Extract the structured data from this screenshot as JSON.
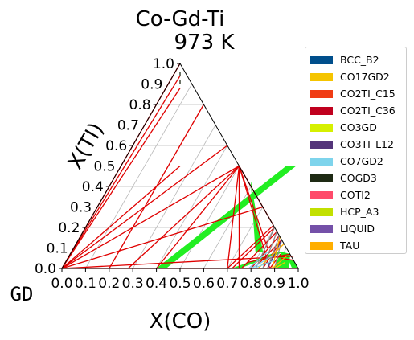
{
  "chart_data": {
    "type": "ternary-phase-diagram",
    "title": "Co-Gd-Ti",
    "subtitle": "973  K",
    "xlabel": "X(CO)",
    "ylabel": "X(TI)",
    "corner_label": "GD",
    "xlim": [
      0,
      1
    ],
    "ylim": [
      0,
      1
    ],
    "x_ticks": [
      "0.0",
      "0.1",
      "0.2",
      "0.3",
      "0.4",
      "0.5",
      "0.6",
      "0.7",
      "0.8",
      "0.9",
      "1.0"
    ],
    "y_ticks": [
      "0.0",
      "0.1",
      "0.2",
      "0.3",
      "0.4",
      "0.5",
      "0.6",
      "0.7",
      "0.8",
      "0.9",
      "1.0"
    ],
    "grid": true,
    "legend_position": "right",
    "legend": [
      {
        "name": "BCC_B2",
        "color": "#004f8c"
      },
      {
        "name": "CO17GD2",
        "color": "#f5c400"
      },
      {
        "name": "CO2TI_C15",
        "color": "#f03c14"
      },
      {
        "name": "CO2TI_C36",
        "color": "#c0001e"
      },
      {
        "name": "CO3GD",
        "color": "#d6f000"
      },
      {
        "name": "CO3TI_L12",
        "color": "#54347a"
      },
      {
        "name": "CO7GD2",
        "color": "#7ed4ec"
      },
      {
        "name": "COGD3",
        "color": "#1e2a14"
      },
      {
        "name": "COTI2",
        "color": "#ff4a6a"
      },
      {
        "name": "HCP_A3",
        "color": "#c2e000"
      },
      {
        "name": "LIQUID",
        "color": "#7450a8"
      },
      {
        "name": "TAU",
        "color": "#ffae00"
      }
    ],
    "regions": [
      {
        "color": "#22ee22",
        "points": [
          [
            0.4,
            0.0
          ],
          [
            0.44,
            0.0
          ],
          [
            0.74,
            0.5
          ],
          [
            0.7,
            0.5
          ]
        ]
      },
      {
        "color": "#22ee22",
        "points": [
          [
            0.59,
            0.42
          ],
          [
            0.615,
            0.38
          ],
          [
            0.81,
            0.08
          ],
          [
            0.78,
            0.08
          ]
        ]
      },
      {
        "color": "#22ee22",
        "points": [
          [
            0.895,
            0.0
          ],
          [
            0.96,
            0.0
          ],
          [
            0.93,
            0.07
          ],
          [
            0.89,
            0.08
          ]
        ]
      },
      {
        "color": "#22ee22",
        "points": [
          [
            0.72,
            0.0
          ],
          [
            0.75,
            0.0
          ],
          [
            0.895,
            0.08
          ],
          [
            0.87,
            0.08
          ]
        ]
      },
      {
        "color": "#22ee22",
        "points": [
          [
            0.975,
            0.0
          ],
          [
            1.0,
            0.0
          ],
          [
            0.96,
            0.04
          ],
          [
            0.94,
            0.04
          ]
        ]
      }
    ],
    "tie_lines": [
      {
        "color": "#e00000",
        "points": [
          [
            0.0,
            0.0
          ],
          [
            0.0,
            1.0
          ]
        ]
      },
      {
        "color": "#e00000",
        "points": [
          [
            0.0,
            0.0
          ],
          [
            0.03,
            0.94
          ]
        ]
      },
      {
        "color": "#e00000",
        "points": [
          [
            0.0,
            0.0
          ],
          [
            0.06,
            0.88
          ]
        ]
      },
      {
        "color": "#e00000",
        "points": [
          [
            0.0,
            0.0
          ],
          [
            0.25,
            0.5
          ]
        ]
      },
      {
        "color": "#e00000",
        "points": [
          [
            0.0,
            0.0
          ],
          [
            0.4,
            0.6
          ]
        ]
      },
      {
        "color": "#e00000",
        "points": [
          [
            0.0,
            0.0
          ],
          [
            0.5,
            0.5
          ]
        ]
      },
      {
        "color": "#e00000",
        "points": [
          [
            0.0,
            0.0
          ],
          [
            0.7,
            0.3
          ]
        ]
      },
      {
        "color": "#e00000",
        "points": [
          [
            0.0,
            0.0
          ],
          [
            0.95,
            0.06
          ]
        ]
      },
      {
        "color": "#e00000",
        "points": [
          [
            0.0,
            0.0
          ],
          [
            1.0,
            0.0
          ]
        ]
      },
      {
        "color": "#e00000",
        "points": [
          [
            0.28,
            0.0
          ],
          [
            0.5,
            0.5
          ]
        ]
      },
      {
        "color": "#e00000",
        "points": [
          [
            0.4,
            0.0
          ],
          [
            0.5,
            0.5
          ]
        ]
      },
      {
        "color": "#e00000",
        "points": [
          [
            0.5,
            0.5
          ],
          [
            0.82,
            0.1
          ]
        ]
      },
      {
        "color": "#e00000",
        "points": [
          [
            0.5,
            0.5
          ],
          [
            0.75,
            0.0
          ]
        ]
      },
      {
        "color": "#e00000",
        "points": [
          [
            0.5,
            0.5
          ],
          [
            0.7,
            0.0
          ]
        ]
      },
      {
        "color": "#e00000",
        "points": [
          [
            0.5,
            0.5
          ],
          [
            0.88,
            0.0
          ]
        ]
      },
      {
        "color": "#e00000",
        "points": [
          [
            0.5,
            0.5
          ],
          [
            0.79,
            0.21
          ]
        ]
      },
      {
        "color": "#e00000",
        "points": [
          [
            0.7,
            0.0
          ],
          [
            0.79,
            0.21
          ]
        ]
      },
      {
        "color": "#e00000",
        "points": [
          [
            0.72,
            0.0
          ],
          [
            0.8,
            0.2
          ]
        ]
      },
      {
        "color": "#e00000",
        "points": [
          [
            0.76,
            0.0
          ],
          [
            0.82,
            0.18
          ]
        ]
      },
      {
        "color": "#e00000",
        "points": [
          [
            0.8,
            0.0
          ],
          [
            0.84,
            0.16
          ]
        ]
      },
      {
        "color": "#e00000",
        "points": [
          [
            0.82,
            0.02
          ],
          [
            0.86,
            0.14
          ]
        ]
      },
      {
        "color": "#e00000",
        "points": [
          [
            0.85,
            0.0
          ],
          [
            0.86,
            0.14
          ]
        ]
      },
      {
        "color": "#e00000",
        "points": [
          [
            0.88,
            0.0
          ],
          [
            0.89,
            0.07
          ]
        ]
      },
      {
        "color": "#e00000",
        "points": [
          [
            0.9,
            0.05
          ],
          [
            0.96,
            0.04
          ]
        ]
      },
      {
        "color": "#e00000",
        "points": [
          [
            0.77,
            0.03
          ],
          [
            0.93,
            0.07
          ]
        ]
      },
      {
        "color": "#e00000",
        "points": [
          [
            0.2,
            0.8
          ],
          [
            0.2,
            0.0
          ]
        ]
      },
      {
        "color": "#8a8a8a",
        "points": [
          [
            0.8,
            0.2
          ],
          [
            0.82,
            0.0
          ]
        ]
      },
      {
        "color": "#8a8a8a",
        "points": [
          [
            0.82,
            0.18
          ],
          [
            0.85,
            0.0
          ]
        ]
      },
      {
        "color": "#8a8a8a",
        "points": [
          [
            0.84,
            0.16
          ],
          [
            0.87,
            0.0
          ]
        ]
      },
      {
        "color": "#8a8a8a",
        "points": [
          [
            0.86,
            0.14
          ],
          [
            0.9,
            0.0
          ]
        ]
      },
      {
        "color": "#54347a",
        "points": [
          [
            0.86,
            0.14
          ],
          [
            0.87,
            0.0
          ]
        ]
      },
      {
        "color": "#ffae00",
        "points": [
          [
            0.845,
            0.155
          ],
          [
            0.89,
            0.0
          ]
        ]
      },
      {
        "color": "#ffae00",
        "points": [
          [
            0.88,
            0.12
          ],
          [
            0.83,
            0.0
          ]
        ]
      },
      {
        "color": "#ffae00",
        "points": [
          [
            0.89,
            0.0
          ],
          [
            0.92,
            0.06
          ]
        ]
      },
      {
        "color": "#7ed4ec",
        "points": [
          [
            0.79,
            0.0
          ],
          [
            0.83,
            0.08
          ]
        ]
      },
      {
        "color": "#7ed4ec",
        "points": [
          [
            0.8,
            0.0
          ],
          [
            0.86,
            0.06
          ]
        ]
      },
      {
        "color": "#7ed4ec",
        "points": [
          [
            0.81,
            0.0
          ],
          [
            0.88,
            0.04
          ]
        ]
      },
      {
        "color": "#f5c400",
        "points": [
          [
            0.9,
            0.0
          ],
          [
            0.93,
            0.03
          ]
        ]
      },
      {
        "color": "#1e2a14",
        "points": [
          [
            0.02,
            0.96
          ],
          [
            0.03,
            0.94
          ]
        ]
      },
      {
        "color": "#1e2a14",
        "points": [
          [
            0.04,
            0.92
          ],
          [
            0.05,
            0.9
          ]
        ]
      }
    ]
  }
}
